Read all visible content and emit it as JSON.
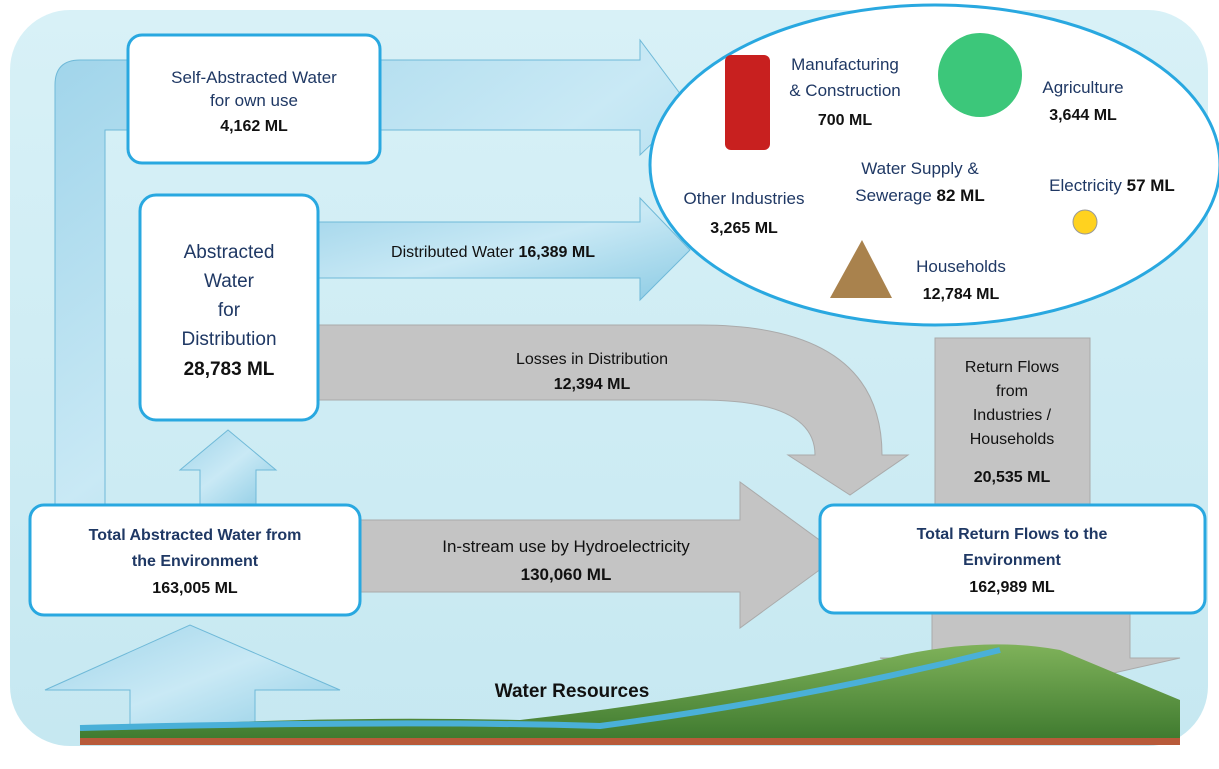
{
  "self_abstracted": {
    "lines": [
      "Self-Abstracted Water",
      "for own use"
    ],
    "amount": "4,162 ML"
  },
  "abstracted_for_distribution": {
    "lines": [
      "Abstracted",
      "Water",
      "for",
      "Distribution"
    ],
    "amount": "28,783 ML"
  },
  "distributed_water": {
    "label": "Distributed Water",
    "amount": "16,389 ML"
  },
  "losses": {
    "label": "Losses in Distribution",
    "amount": "12,394 ML"
  },
  "total_abstracted": {
    "lines": [
      "Total Abstracted Water from",
      "the Environment"
    ],
    "amount": "163,005 ML"
  },
  "hydroelectricity": {
    "label": "In-stream use by Hydroelectricity",
    "amount": "130,060 ML"
  },
  "return_flows": {
    "lines": [
      "Return Flows",
      "from",
      "Industries /",
      "Households"
    ],
    "amount": "20,535 ML"
  },
  "total_return": {
    "lines": [
      "Total Return Flows to the",
      "Environment"
    ],
    "amount": "162,989 ML"
  },
  "users": [
    {
      "lines": [
        "Manufacturing",
        "& Construction"
      ],
      "amount": "700 ML"
    },
    {
      "lines": [
        "Agriculture"
      ],
      "amount": "3,644 ML"
    },
    {
      "lines": [
        "Water Supply &",
        "Sewerage"
      ],
      "amount": "82 ML"
    },
    {
      "lines": [
        "Electricity"
      ],
      "amount": "57 ML"
    },
    {
      "lines": [
        "Other Industries"
      ],
      "amount": "3,265 ML"
    },
    {
      "lines": [
        "Households"
      ],
      "amount": "12,784 ML"
    }
  ],
  "water_resources": "Water Resources"
}
